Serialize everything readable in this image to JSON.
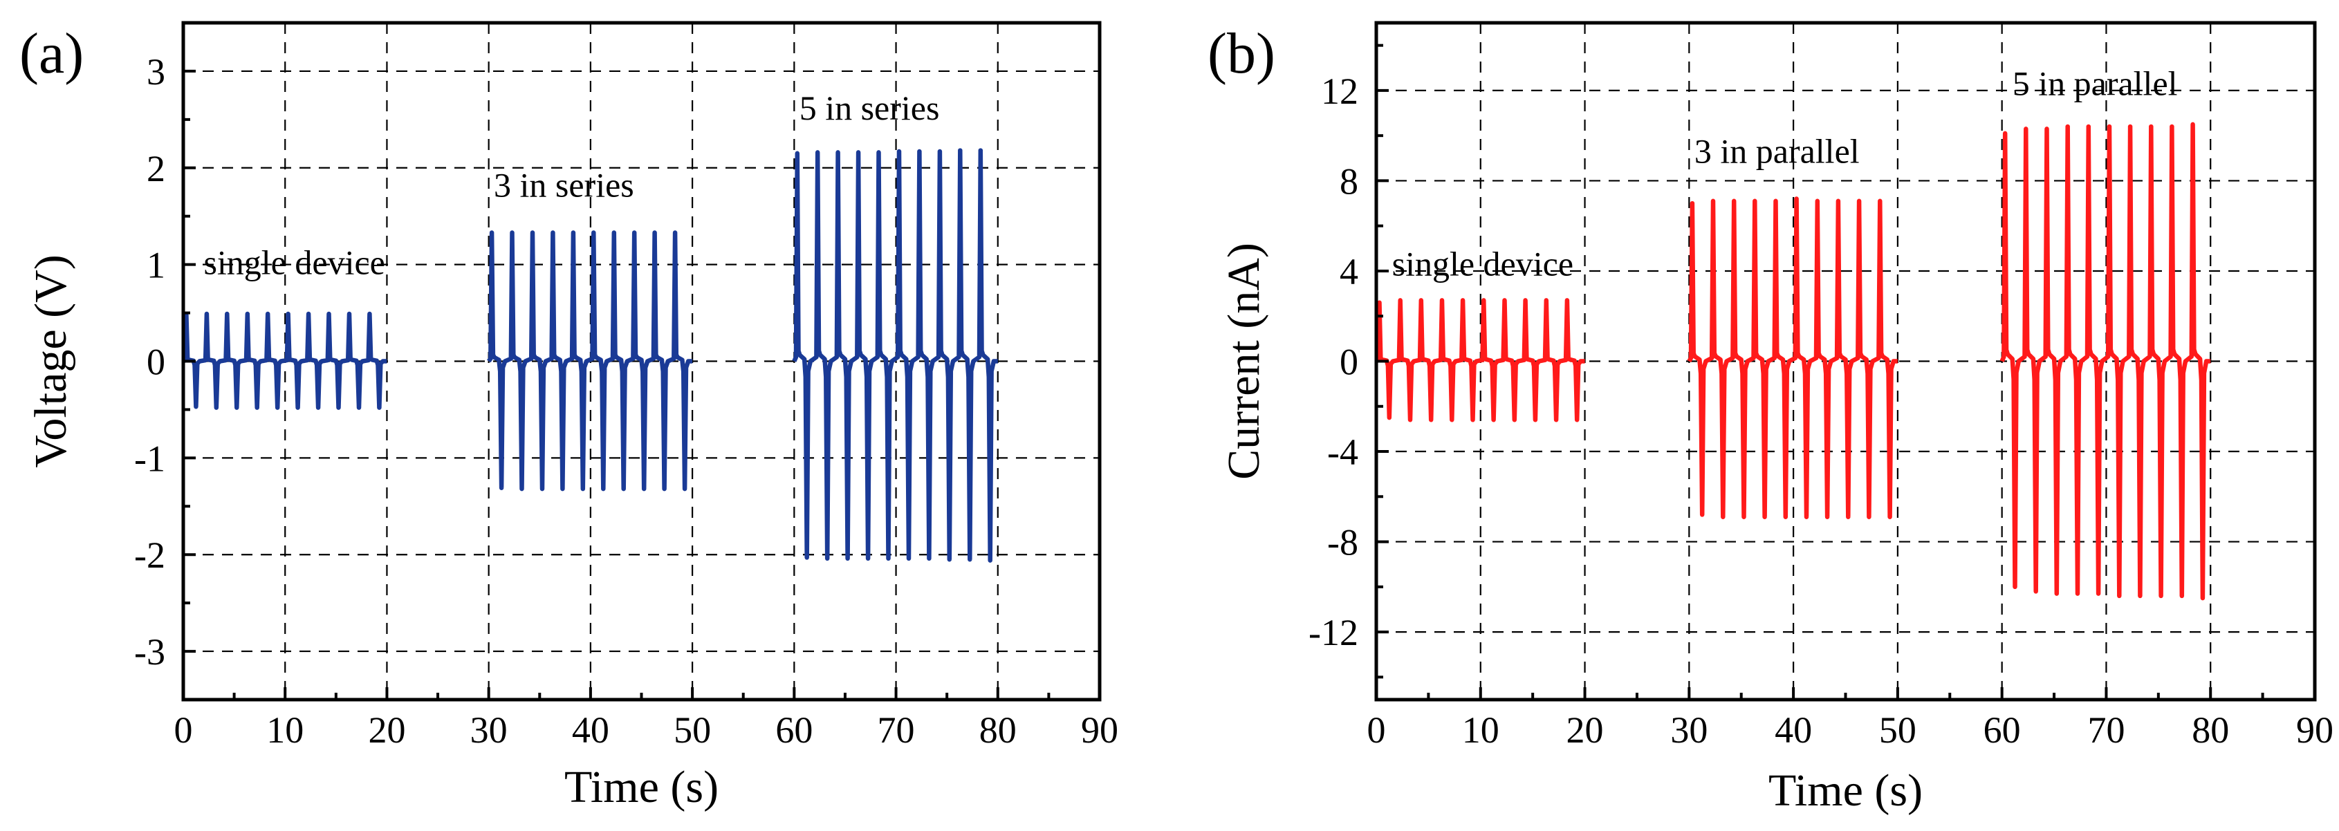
{
  "colors": {
    "voltage_series": "#1a3a96",
    "current_series": "#ff1a1a",
    "axis": "#000000",
    "grid": "#000000",
    "background": "#ffffff"
  },
  "chart_data": [
    {
      "type": "line",
      "panel_label": "(a)",
      "xlabel": "Time (s)",
      "ylabel": "Voltage (V)",
      "xlim": [
        0,
        90
      ],
      "ylim": [
        -3.5,
        3.5
      ],
      "xticks": [
        0,
        10,
        20,
        30,
        40,
        50,
        60,
        70,
        80,
        90
      ],
      "yticks": [
        -3,
        -2,
        -1,
        0,
        1,
        2,
        3
      ],
      "grid": true,
      "series": [
        {
          "name": "single device",
          "color": "#1a3a96",
          "peak_times": [
            0.3,
            2.3,
            4.3,
            6.3,
            8.3,
            10.3,
            12.3,
            14.3,
            16.3,
            18.3
          ],
          "peak_values": [
            0.48,
            0.49,
            0.49,
            0.49,
            0.49,
            0.49,
            0.49,
            0.49,
            0.49,
            0.49
          ],
          "trough_values": [
            -0.47,
            -0.48,
            -0.48,
            -0.48,
            -0.48,
            -0.48,
            -0.48,
            -0.48,
            -0.48,
            -0.48
          ],
          "span": [
            0,
            20
          ],
          "annotation": {
            "text": "single device",
            "x": 2,
            "y": 0.9
          }
        },
        {
          "name": "3 in series",
          "color": "#1a3a96",
          "peak_times": [
            30.3,
            32.3,
            34.3,
            36.3,
            38.3,
            40.3,
            42.3,
            44.3,
            46.3,
            48.3
          ],
          "peak_values": [
            1.33,
            1.33,
            1.33,
            1.33,
            1.33,
            1.33,
            1.33,
            1.33,
            1.33,
            1.33
          ],
          "trough_values": [
            -1.31,
            -1.32,
            -1.32,
            -1.32,
            -1.32,
            -1.32,
            -1.32,
            -1.32,
            -1.32,
            -1.32
          ],
          "span": [
            30,
            50
          ],
          "annotation": {
            "text": "3 in series",
            "x": 30.5,
            "y": 1.7
          }
        },
        {
          "name": "5 in series",
          "color": "#1a3a96",
          "peak_times": [
            60.3,
            62.3,
            64.3,
            66.3,
            68.3,
            70.3,
            72.3,
            74.3,
            76.3,
            78.3
          ],
          "peak_values": [
            2.15,
            2.16,
            2.16,
            2.16,
            2.16,
            2.17,
            2.17,
            2.17,
            2.18,
            2.18
          ],
          "trough_values": [
            -2.03,
            -2.04,
            -2.04,
            -2.04,
            -2.04,
            -2.04,
            -2.04,
            -2.05,
            -2.05,
            -2.06
          ],
          "span": [
            60,
            80
          ],
          "annotation": {
            "text": "5 in series",
            "x": 60.5,
            "y": 2.5
          }
        }
      ]
    },
    {
      "type": "line",
      "panel_label": "(b)",
      "xlabel": "Time (s)",
      "ylabel": "Current (nA)",
      "xlim": [
        0,
        90
      ],
      "ylim": [
        -15,
        15
      ],
      "xticks": [
        0,
        10,
        20,
        30,
        40,
        50,
        60,
        70,
        80,
        90
      ],
      "yticks": [
        -12,
        -8,
        -4,
        0,
        4,
        8,
        12
      ],
      "grid": true,
      "series": [
        {
          "name": "single device",
          "color": "#ff1a1a",
          "peak_times": [
            0.3,
            2.3,
            4.3,
            6.3,
            8.3,
            10.3,
            12.3,
            14.3,
            16.3,
            18.3
          ],
          "peak_values": [
            2.6,
            2.7,
            2.7,
            2.7,
            2.7,
            2.7,
            2.7,
            2.7,
            2.7,
            2.7
          ],
          "trough_values": [
            -2.5,
            -2.6,
            -2.6,
            -2.6,
            -2.6,
            -2.6,
            -2.6,
            -2.6,
            -2.6,
            -2.6
          ],
          "span": [
            0,
            20
          ],
          "annotation": {
            "text": "single device",
            "x": 1.5,
            "y": 3.8
          }
        },
        {
          "name": "3 in parallel",
          "color": "#ff1a1a",
          "peak_times": [
            30.3,
            32.3,
            34.3,
            36.3,
            38.3,
            40.3,
            42.3,
            44.3,
            46.3,
            48.3
          ],
          "peak_values": [
            7.0,
            7.1,
            7.1,
            7.1,
            7.1,
            7.2,
            7.1,
            7.1,
            7.1,
            7.1
          ],
          "trough_values": [
            -6.8,
            -6.9,
            -6.9,
            -6.9,
            -6.9,
            -6.9,
            -6.9,
            -6.9,
            -6.9,
            -6.9
          ],
          "span": [
            30,
            50
          ],
          "annotation": {
            "text": "3 in parallel",
            "x": 30.5,
            "y": 8.8
          }
        },
        {
          "name": "5 in parallel",
          "color": "#ff1a1a",
          "peak_times": [
            60.3,
            62.3,
            64.3,
            66.3,
            68.3,
            70.3,
            72.3,
            74.3,
            76.3,
            78.3
          ],
          "peak_values": [
            10.1,
            10.3,
            10.3,
            10.4,
            10.4,
            10.4,
            10.4,
            10.4,
            10.4,
            10.5
          ],
          "trough_values": [
            -10.0,
            -10.2,
            -10.3,
            -10.3,
            -10.3,
            -10.4,
            -10.4,
            -10.4,
            -10.4,
            -10.5
          ],
          "span": [
            60,
            80
          ],
          "annotation": {
            "text": "5 in parallel",
            "x": 61,
            "y": 11.8
          }
        }
      ]
    }
  ]
}
